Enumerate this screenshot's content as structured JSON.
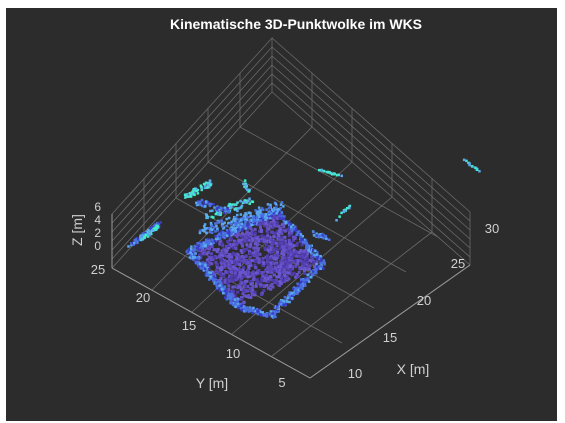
{
  "chart_data": {
    "type": "scatter",
    "title": "Kinematische 3D-Punktwolke im WKS",
    "xlabel": "X [m]",
    "ylabel": "Y [m]",
    "zlabel": "Z [m]",
    "xticks": [
      10,
      15,
      20,
      25,
      30
    ],
    "yticks": [
      5,
      10,
      15,
      20,
      25
    ],
    "zticks": [
      0,
      2,
      4,
      6
    ],
    "xlim": [
      8,
      32
    ],
    "ylim": [
      3,
      27
    ],
    "zlim": [
      0,
      6
    ],
    "grid": true,
    "colormap": [
      "#3a3cc8",
      "#4a6fe0",
      "#5aa8ee",
      "#4fd8d8",
      "#3ef0c8"
    ],
    "background": "#2c2c2c"
  }
}
